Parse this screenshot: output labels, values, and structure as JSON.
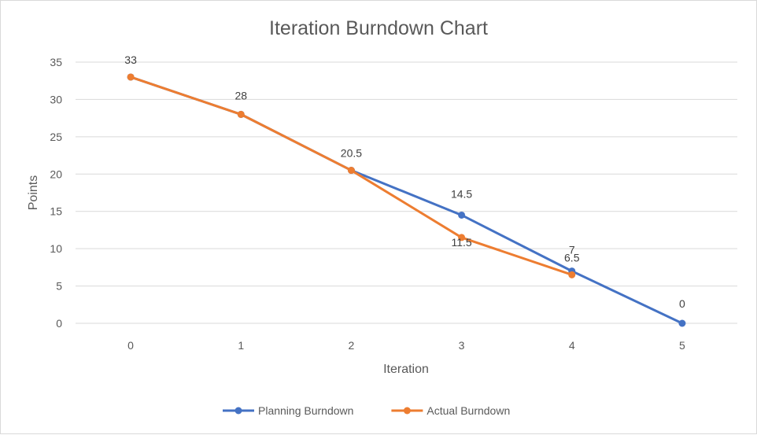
{
  "chart_data": {
    "type": "line",
    "title": "Iteration Burndown Chart",
    "xlabel": "Iteration",
    "ylabel": "Points",
    "x": [
      0,
      1,
      2,
      3,
      4,
      5
    ],
    "ylim": [
      0,
      35
    ],
    "yticks": [
      0,
      5,
      10,
      15,
      20,
      25,
      30,
      35
    ],
    "grid": true,
    "legend_position": "bottom",
    "series": [
      {
        "name": "Planning Burndown",
        "color": "#4472c4",
        "values": [
          33,
          28,
          20.5,
          14.5,
          7,
          0
        ],
        "labels": [
          "",
          "",
          "",
          "14.5",
          "7",
          "0"
        ]
      },
      {
        "name": "Actual Burndown",
        "color": "#ed7d31",
        "values": [
          33,
          28,
          20.5,
          11.5,
          6.5,
          null
        ],
        "labels": [
          "33",
          "28",
          "20.5",
          "11.5",
          "6.5",
          ""
        ]
      }
    ]
  }
}
